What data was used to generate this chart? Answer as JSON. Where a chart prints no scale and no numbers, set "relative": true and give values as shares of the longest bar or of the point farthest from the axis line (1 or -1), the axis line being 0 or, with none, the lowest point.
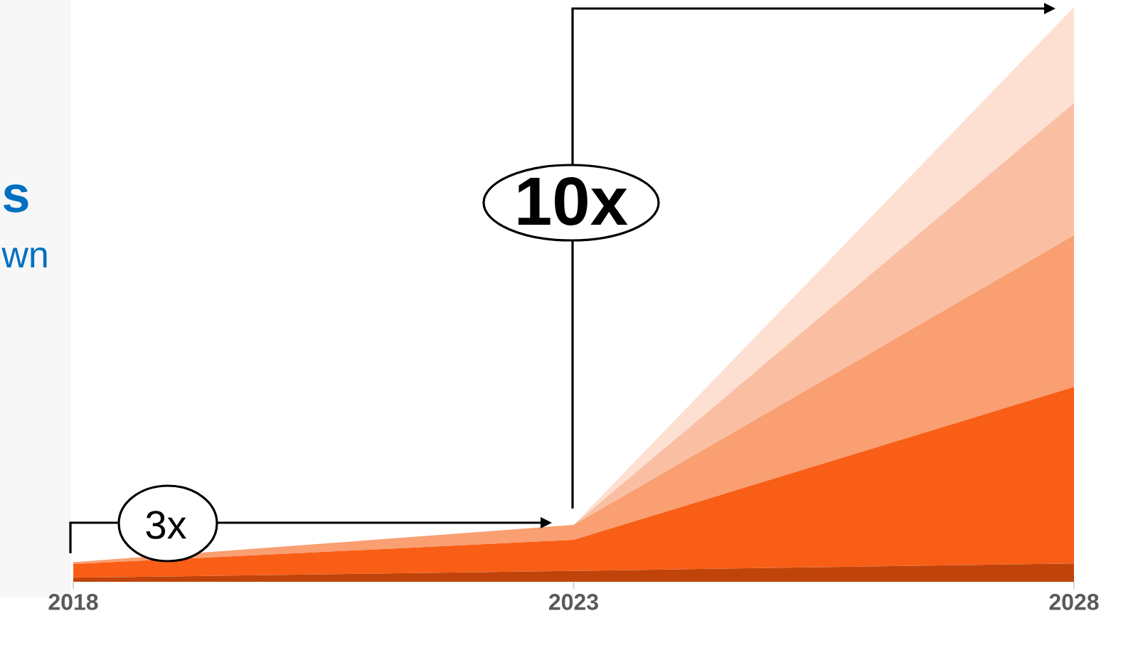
{
  "chart_data": {
    "type": "area",
    "stacked": true,
    "relative": true,
    "categories": [
      "2018",
      "2023",
      "2028"
    ],
    "series": [
      {
        "color": "#c0440a",
        "values": [
          0.007,
          0.019,
          0.032
        ]
      },
      {
        "color": "#f95e16",
        "values": [
          0.024,
          0.054,
          0.307
        ]
      },
      {
        "color": "#f99f72",
        "values": [
          0.003,
          0.026,
          0.264
        ]
      },
      {
        "color": "#fabfa3",
        "values": [
          0,
          0,
          0.23
        ]
      },
      {
        "color": "#fde0d2",
        "values": [
          0,
          0,
          0.167
        ]
      }
    ],
    "annotations": [
      "3x",
      "10x",
      "s",
      "wn"
    ]
  }
}
